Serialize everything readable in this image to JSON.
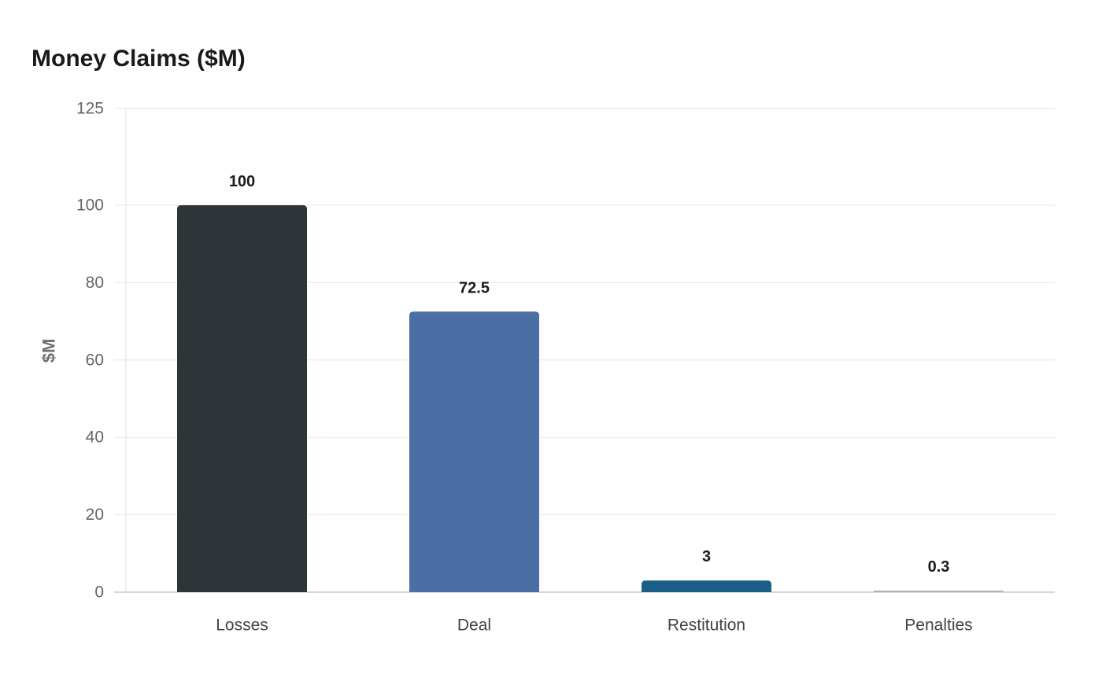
{
  "chart_data": {
    "type": "bar",
    "title": "Money Claims ($M)",
    "xlabel": "",
    "ylabel": "$M",
    "categories": [
      "Losses",
      "Deal",
      "Restitution",
      "Penalties"
    ],
    "values": [
      100,
      72.5,
      3,
      0.3
    ],
    "value_labels": [
      "100",
      "72.5",
      "3",
      "0.3"
    ],
    "ylim": [
      0,
      125
    ],
    "yticks": [
      0,
      20,
      40,
      60,
      80,
      100,
      125
    ],
    "colors": [
      "#2e3538",
      "#4a6fa5",
      "#1b5f87",
      "#b0b6bc"
    ],
    "grid": true,
    "legend": "none"
  }
}
